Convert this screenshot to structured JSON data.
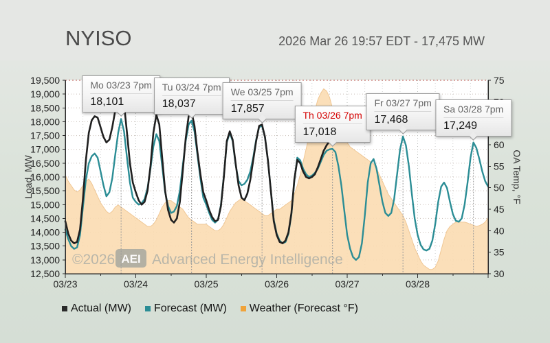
{
  "header": {
    "title": "NYISO",
    "timestamp": "2026 Mar 26 19:57 EDT - 17,475 MW"
  },
  "watermark": {
    "copyright": "©2026",
    "badge": "AEI",
    "name": "Advanced Energy Intelligence"
  },
  "legend": {
    "items": [
      {
        "label": "Actual (MW)",
        "color": "#2b2b2b"
      },
      {
        "label": "Forecast (MW)",
        "color": "#2b8d95"
      },
      {
        "label": "Weather (Forecast °F)",
        "color": "#f0a33a"
      }
    ]
  },
  "chart_data": {
    "type": "line",
    "title": "NYISO load actual vs forecast with outside-air temperature",
    "x_unit": "hours since 2026-03-23 00:00",
    "x_range": [
      0,
      144
    ],
    "grid": true,
    "y_left": {
      "label": "Load, MW",
      "range": [
        12500,
        19500
      ],
      "tick_step": 500,
      "ticks": [
        {
          "v": 19500,
          "label": "19,500"
        },
        {
          "v": 19000,
          "label": "19,000"
        },
        {
          "v": 18500,
          "label": "18,500"
        },
        {
          "v": 18000,
          "label": "18,000"
        },
        {
          "v": 17500,
          "label": "17,500"
        },
        {
          "v": 17000,
          "label": "17,000"
        },
        {
          "v": 16500,
          "label": "16,500"
        },
        {
          "v": 16000,
          "label": "16,000"
        },
        {
          "v": 15500,
          "label": "15,500"
        },
        {
          "v": 15000,
          "label": "15,000"
        },
        {
          "v": 14500,
          "label": "14,500"
        },
        {
          "v": 14000,
          "label": "14,000"
        },
        {
          "v": 13500,
          "label": "13,500"
        },
        {
          "v": 13000,
          "label": "13,000"
        },
        {
          "v": 12500,
          "label": "12,500"
        }
      ]
    },
    "y_right": {
      "label": "OA Temp, °F",
      "range": [
        30,
        75
      ],
      "tick_step": 5,
      "ticks": [
        {
          "v": 75,
          "label": "75"
        },
        {
          "v": 70,
          "label": "70"
        },
        {
          "v": 65,
          "label": "65"
        },
        {
          "v": 60,
          "label": "60"
        },
        {
          "v": 55,
          "label": "55"
        },
        {
          "v": 50,
          "label": "50"
        },
        {
          "v": 45,
          "label": "45"
        },
        {
          "v": 40,
          "label": "40"
        },
        {
          "v": 35,
          "label": "35"
        },
        {
          "v": 30,
          "label": "30"
        }
      ]
    },
    "x_ticks": [
      {
        "h": 0,
        "label": "03/23"
      },
      {
        "h": 24,
        "label": "03/24"
      },
      {
        "h": 48,
        "label": "03/25"
      },
      {
        "h": 72,
        "label": "03/26"
      },
      {
        "h": 96,
        "label": "03/27"
      },
      {
        "h": 120,
        "label": "03/28"
      }
    ],
    "series": [
      {
        "name": "Actual (MW)",
        "type": "line",
        "axis": "left",
        "color": "#202020",
        "width": 2.6,
        "start_hour": 0,
        "values": [
          14400,
          13950,
          13700,
          13600,
          13650,
          14100,
          15200,
          16600,
          17600,
          18050,
          18200,
          18150,
          17800,
          17450,
          17250,
          17350,
          17800,
          18400,
          18950,
          19150,
          18650,
          17600,
          16500,
          15800,
          15450,
          15150,
          15000,
          15100,
          15500,
          16400,
          17600,
          18250,
          17900,
          16700,
          15500,
          14800,
          14450,
          14350,
          14500,
          15100,
          16200,
          17400,
          18200,
          18360,
          17850,
          16900,
          16100,
          15450,
          15150,
          14800,
          14550,
          14400,
          14450,
          14950,
          16000,
          17300,
          17650,
          17350,
          16500,
          15700,
          15250,
          15160,
          15400,
          15900,
          16600,
          17300,
          17850,
          17900,
          17450,
          16600,
          15500,
          14400,
          13900,
          13650,
          13600,
          13700,
          14000,
          14700,
          15900,
          16620,
          16500,
          16200,
          16000,
          15950,
          16000,
          16100,
          16350,
          16650,
          16950,
          17150,
          17300,
          17475
        ]
      },
      {
        "name": "Forecast (MW)",
        "type": "line",
        "axis": "left",
        "color": "#2b8d95",
        "width": 2.4,
        "start_hour": 0,
        "values": [
          14100,
          13750,
          13500,
          13400,
          13450,
          13900,
          14900,
          15900,
          16500,
          16750,
          16850,
          16700,
          16200,
          15700,
          15300,
          15450,
          15950,
          16800,
          17600,
          18101,
          17650,
          16700,
          15800,
          15250,
          15100,
          15000,
          15050,
          15200,
          15600,
          16300,
          17100,
          17550,
          17300,
          16400,
          15450,
          14950,
          14700,
          14750,
          14950,
          15500,
          16400,
          17300,
          17900,
          18037,
          17650,
          16800,
          15950,
          15250,
          15000,
          14700,
          14450,
          14350,
          14450,
          15000,
          16050,
          17250,
          17600,
          17300,
          16450,
          15850,
          15700,
          15750,
          15900,
          16200,
          16700,
          17350,
          17800,
          17857,
          17450,
          16600,
          15500,
          14450,
          13950,
          13700,
          13600,
          13650,
          13950,
          14650,
          15850,
          16700,
          16600,
          16300,
          16100,
          16000,
          16050,
          16150,
          16300,
          16550,
          16800,
          16950,
          17000,
          17018,
          16900,
          16400,
          15700,
          14800,
          13900,
          13400,
          13100,
          13000,
          13100,
          13600,
          14600,
          15800,
          16500,
          16650,
          16300,
          15700,
          15100,
          14700,
          14590,
          14700,
          15200,
          16100,
          17000,
          17468,
          17150,
          16400,
          15400,
          14500,
          13900,
          13550,
          13380,
          13340,
          13400,
          13700,
          14300,
          15100,
          15650,
          15800,
          15600,
          15100,
          14650,
          14420,
          14380,
          14500,
          15000,
          15800,
          16700,
          17249,
          17050,
          16650,
          16200,
          15850,
          15650
        ]
      },
      {
        "name": "Weather (Forecast °F)",
        "type": "area",
        "axis": "right",
        "color": "#fbdcb1",
        "stroke": "#f0c794",
        "start_hour": 0,
        "values": [
          53,
          51.5,
          50.5,
          49.5,
          49,
          49.5,
          50.5,
          51.5,
          52,
          51,
          49.5,
          48,
          46.5,
          45.5,
          44.5,
          44,
          44.5,
          45.5,
          46,
          45.5,
          45,
          44.5,
          44,
          43.5,
          43,
          42.5,
          42,
          41.5,
          41,
          41,
          41.5,
          42.5,
          44,
          45.5,
          46.5,
          47,
          47,
          46.5,
          46,
          45.5,
          45,
          44,
          43,
          42.5,
          42,
          41.5,
          41.5,
          41.5,
          41.5,
          41,
          40.5,
          40,
          40,
          40.5,
          41.5,
          43,
          44.5,
          45.5,
          46.5,
          47,
          47.5,
          47,
          46.5,
          46,
          45.5,
          45,
          44.5,
          44,
          43.5,
          43.5,
          44,
          44.5,
          45,
          45,
          45.5,
          46,
          46.5,
          47,
          48.5,
          50.5,
          53,
          56,
          59,
          62,
          65,
          68,
          70.5,
          72,
          73,
          72.5,
          71,
          68.5,
          66,
          64,
          62.5,
          61.5,
          60.5,
          59.5,
          59,
          58.5,
          58,
          57.5,
          57,
          56.5,
          56,
          55.5,
          54.5,
          53,
          51.5,
          50,
          48.5,
          47.5,
          46.5,
          45.5,
          44.5,
          43.5,
          42,
          40,
          38,
          36,
          34.5,
          33,
          32,
          31.5,
          31,
          31,
          31.5,
          33,
          35.5,
          38,
          40,
          41,
          41.5,
          42,
          42,
          42,
          42,
          41.8,
          41.5,
          41.3,
          41,
          41.2,
          41.5,
          42,
          43
        ]
      }
    ],
    "callouts": [
      {
        "label": "Mo 03/23 7pm",
        "value": "18,101",
        "hour": 19,
        "peak": 18101,
        "highlight": false
      },
      {
        "label": "Tu 03/24 7pm",
        "value": "18,037",
        "hour": 43,
        "peak": 18037,
        "highlight": false
      },
      {
        "label": "We 03/25 7pm",
        "value": "17,857",
        "hour": 67,
        "peak": 17857,
        "highlight": false
      },
      {
        "label": "Th 03/26 7pm",
        "value": "17,018",
        "hour": 91,
        "peak": 17018,
        "highlight": true
      },
      {
        "label": "Fr 03/27 7pm",
        "value": "17,468",
        "hour": 115,
        "peak": 17468,
        "highlight": false
      },
      {
        "label": "Sa 03/28 7pm",
        "value": "17,249",
        "hour": 139,
        "peak": 17249,
        "highlight": false
      }
    ]
  }
}
